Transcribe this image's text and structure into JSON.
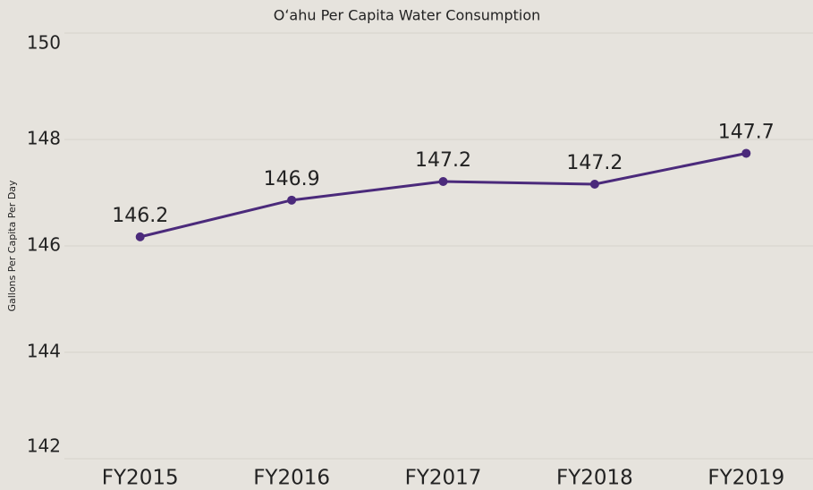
{
  "chart_data": {
    "type": "line",
    "title": "Oʻahu Per Capita Water Consumption",
    "y_label": "Gallons Per Capita Per Day",
    "categories": [
      "FY2015",
      "FY2016",
      "FY2017",
      "FY2018",
      "FY2019"
    ],
    "series": [
      {
        "name": "Gallons Per Capita Per Day",
        "color": "#4b2a7b",
        "values": [
          146.17,
          146.86,
          147.21,
          147.16,
          147.74
        ],
        "value_labels": [
          "146.2",
          "146.9",
          "147.2",
          "147.2",
          "147.7"
        ]
      }
    ],
    "ylim": [
      142,
      150
    ],
    "yticks": [
      142,
      144,
      146,
      148,
      150
    ],
    "grid": true
  }
}
